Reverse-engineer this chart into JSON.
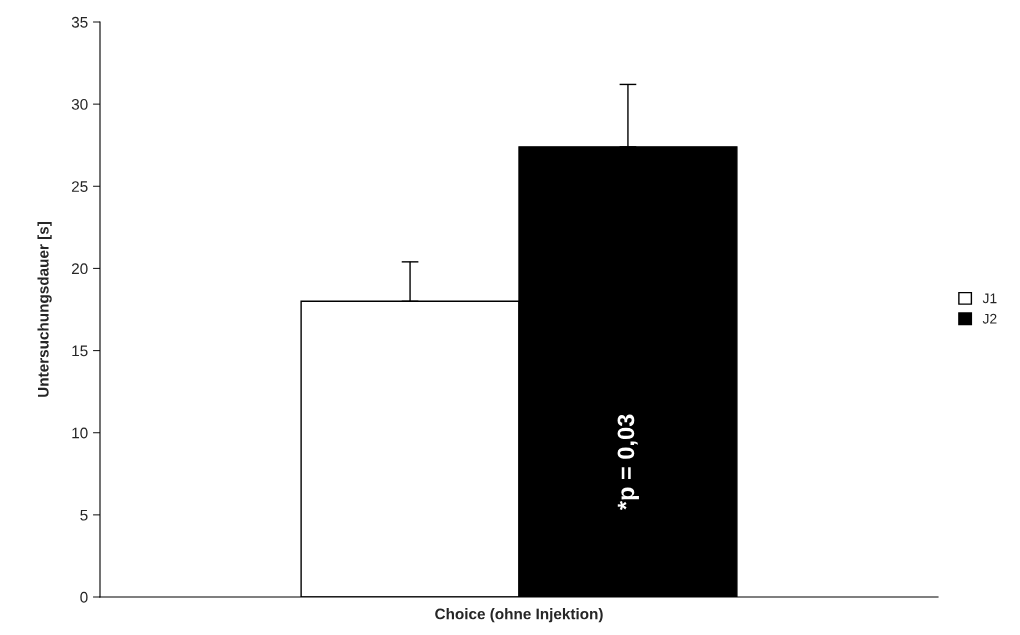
{
  "chart_data": {
    "type": "bar",
    "ylabel": "Untersuchungsdauer [s]",
    "categories": [
      "Choice (ohne Injektion)"
    ],
    "series": [
      {
        "name": "J1",
        "color": "#ffffff",
        "values": [
          18.0
        ],
        "errors": [
          [
            18.0,
            20.4
          ]
        ]
      },
      {
        "name": "J2",
        "color": "#000000",
        "values": [
          27.4
        ],
        "errors": [
          [
            27.4,
            31.2
          ]
        ]
      }
    ],
    "ylim": [
      0,
      35
    ],
    "yticks": [
      0,
      5,
      10,
      15,
      20,
      25,
      30,
      35
    ],
    "grid": false,
    "legend": "right",
    "annotations": [
      "*p = 0,03"
    ]
  }
}
